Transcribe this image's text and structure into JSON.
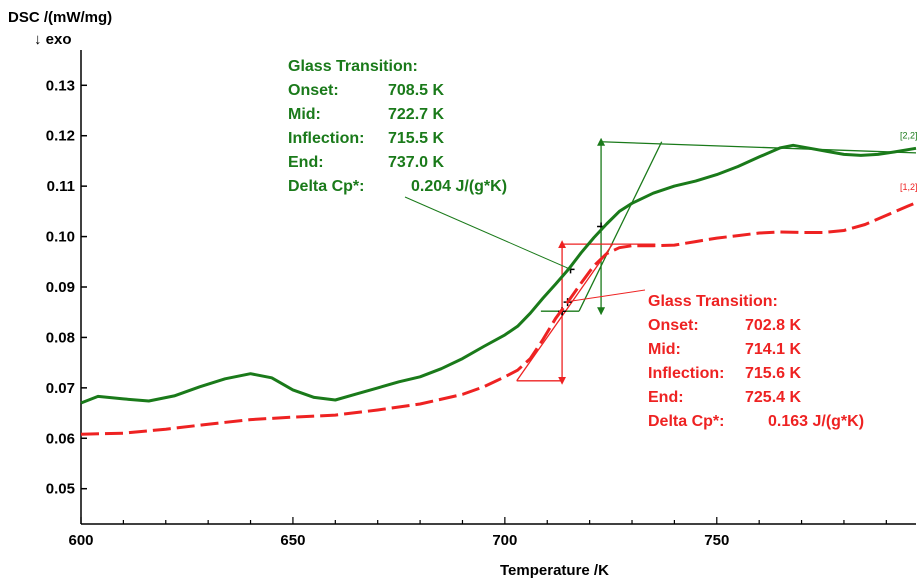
{
  "chart_data": {
    "type": "line",
    "ylabel": "DSC /(mW/mg)",
    "ylabel_sub": "↓ exo",
    "xlabel": "Temperature /K",
    "xlim": [
      600,
      797
    ],
    "ylim": [
      0.043,
      0.137
    ],
    "x_ticks": [
      600,
      650,
      700,
      750
    ],
    "y_ticks": [
      0.05,
      0.06,
      0.07,
      0.08,
      0.09,
      0.1,
      0.11,
      0.12,
      0.13
    ],
    "y_tick_labels": [
      "0.05",
      "0.06",
      "0.07",
      "0.08",
      "0.09",
      "0.10",
      "0.11",
      "0.12",
      "0.13"
    ],
    "grid": false,
    "series": [
      {
        "name": "[2,2]",
        "color": "#1a7a1a",
        "style": "solid",
        "x": [
          600,
          604,
          610,
          616,
          622,
          628,
          634,
          640,
          645,
          650,
          655,
          660,
          665,
          670,
          675,
          680,
          685,
          690,
          695,
          700,
          703,
          706,
          709,
          712,
          715,
          718,
          721,
          724,
          727,
          730,
          735,
          740,
          745,
          750,
          755,
          760,
          765,
          768,
          772,
          776,
          780,
          784,
          788,
          792,
          797
        ],
        "y": [
          0.067,
          0.0683,
          0.0678,
          0.0674,
          0.0684,
          0.0702,
          0.0718,
          0.0728,
          0.072,
          0.0696,
          0.0681,
          0.0676,
          0.0688,
          0.07,
          0.0712,
          0.0722,
          0.0738,
          0.0758,
          0.0782,
          0.0805,
          0.0822,
          0.0848,
          0.0878,
          0.0906,
          0.0935,
          0.0968,
          0.0998,
          0.1025,
          0.105,
          0.1066,
          0.1086,
          0.11,
          0.111,
          0.1123,
          0.1139,
          0.1158,
          0.1176,
          0.1181,
          0.1175,
          0.1169,
          0.1163,
          0.1161,
          0.1163,
          0.1168,
          0.1175
        ]
      },
      {
        "name": "[1,2]",
        "color": "#ee2222",
        "style": "dashed",
        "x": [
          600,
          610,
          620,
          630,
          640,
          650,
          660,
          670,
          680,
          690,
          695,
          700,
          703,
          706,
          709,
          712,
          715,
          718,
          721,
          724,
          727,
          730,
          735,
          740,
          745,
          750,
          755,
          760,
          765,
          770,
          775,
          780,
          785,
          790,
          795,
          797
        ],
        "y": [
          0.0608,
          0.061,
          0.0618,
          0.0628,
          0.0637,
          0.0642,
          0.0646,
          0.0656,
          0.0668,
          0.0687,
          0.0702,
          0.0722,
          0.0735,
          0.0758,
          0.0796,
          0.0838,
          0.0872,
          0.0908,
          0.0942,
          0.0966,
          0.0978,
          0.0982,
          0.0982,
          0.0983,
          0.099,
          0.0997,
          0.1002,
          0.1007,
          0.1009,
          0.1008,
          0.1008,
          0.1012,
          0.1024,
          0.1042,
          0.106,
          0.1067
        ]
      }
    ],
    "analysis": [
      {
        "series": "[2,2]",
        "color": "#1a7a1a",
        "label_lines": [
          {
            "name": "Glass Transition:",
            "value": ""
          },
          {
            "name": "Onset:",
            "value": "708.5 K"
          },
          {
            "name": "Mid:",
            "value": "722.7 K"
          },
          {
            "name": "Inflection:",
            "value": "715.5 K"
          },
          {
            "name": "End:",
            "value": "737.0 K"
          },
          {
            "name": "Delta Cp*:",
            "value": "0.204 J/(g*K)"
          }
        ],
        "baseline_low": {
          "x": [
            708.5,
            717.5
          ],
          "y": 0.0852
        },
        "baseline_high": {
          "x": [
            722.7,
            797
          ],
          "y1": 0.1188,
          "y2": 0.1166
        },
        "tangent": {
          "x": [
            717.5,
            737.0
          ],
          "y": [
            0.0852,
            0.1188
          ]
        },
        "delta_cp_arrow": {
          "x": 722.7,
          "y": [
            0.0852,
            0.1188
          ]
        },
        "markers": [
          {
            "x": 715.5,
            "y": 0.0935
          },
          {
            "x": 722.7,
            "y": 0.102
          },
          {
            "x": 713.5,
            "y": 0.0852
          }
        ],
        "leader_to": {
          "x": 715.5,
          "y": 0.0935
        }
      },
      {
        "series": "[1,2]",
        "color": "#ee2222",
        "label_lines": [
          {
            "name": "Glass Transition:",
            "value": ""
          },
          {
            "name": "Onset:",
            "value": "702.8 K"
          },
          {
            "name": "Mid:",
            "value": "714.1 K"
          },
          {
            "name": "Inflection:",
            "value": "715.6 K"
          },
          {
            "name": "End:",
            "value": "725.4 K"
          },
          {
            "name": "Delta Cp*:",
            "value": "0.163 J/(g*K)"
          }
        ],
        "baseline_low": {
          "x": [
            702.8,
            713.5
          ],
          "y": 0.0714
        },
        "baseline_high": {
          "x": [
            713.5,
            735.5
          ],
          "y": 0.0985
        },
        "tangent": {
          "x": [
            702.8,
            725.4
          ],
          "y": [
            0.0714,
            0.0985
          ]
        },
        "delta_cp_arrow": {
          "x": 713.5,
          "y": [
            0.0714,
            0.0985
          ]
        },
        "markers": [
          {
            "x": 714.8,
            "y": 0.087
          },
          {
            "x": 713.5,
            "y": 0.0852
          }
        ],
        "leader_to": {
          "x": 715.6,
          "y": 0.0872
        }
      }
    ]
  }
}
